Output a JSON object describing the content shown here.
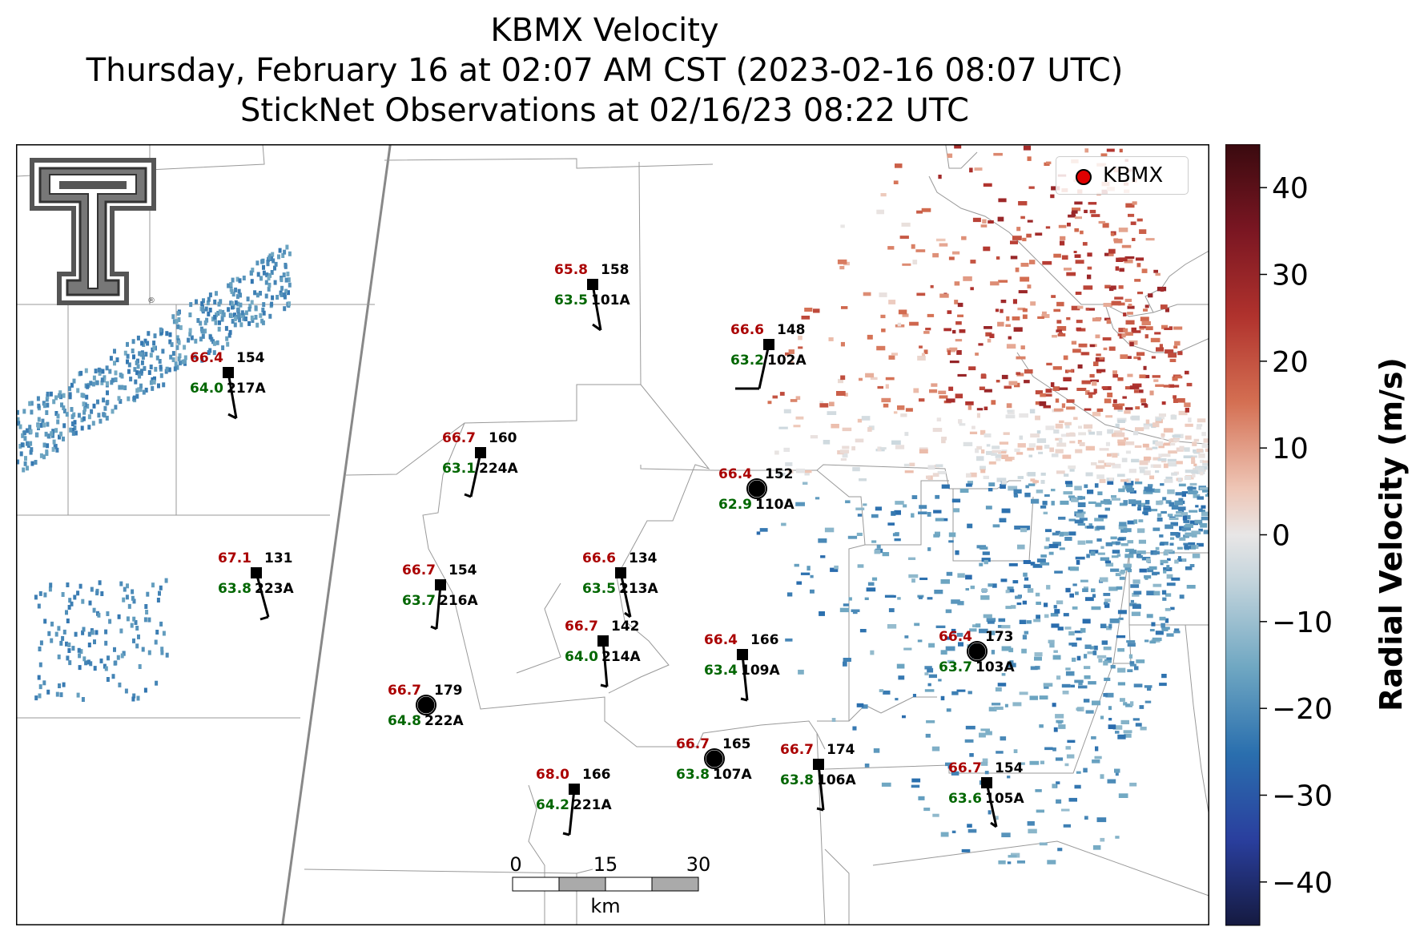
{
  "title": {
    "line1": "KBMX Velocity",
    "line2": "Thursday, February 16 at 02:07 AM CST (2023-02-16 08:07 UTC)",
    "line3": "StickNet Observations at 02/16/23 08:22 UTC"
  },
  "legend": {
    "label": "KBMX"
  },
  "colorbar": {
    "label": "Radial Velocity (m/s)",
    "range": [
      -45,
      45
    ],
    "ticks": [
      "40",
      "30",
      "20",
      "10",
      "0",
      "−10",
      "−20",
      "−30",
      "−40"
    ]
  },
  "scalebar": {
    "ticks": [
      "0",
      "15",
      "30"
    ],
    "unit": "km"
  },
  "logo": {
    "icon": "texas-tech-double-t-logo"
  },
  "colors": {
    "temp": "#aa0000",
    "dewpoint": "#006600",
    "station": "#000000"
  },
  "stations": [
    {
      "id": "101A",
      "temp": "65.8",
      "dew": "63.5",
      "pressure": "158",
      "marker": "square"
    },
    {
      "id": "102A",
      "temp": "66.6",
      "dew": "63.2",
      "pressure": "148",
      "marker": "square"
    },
    {
      "id": "217A",
      "temp": "66.4",
      "dew": "64.0",
      "pressure": "154",
      "marker": "square"
    },
    {
      "id": "224A",
      "temp": "66.7",
      "dew": "63.1",
      "pressure": "160",
      "marker": "square"
    },
    {
      "id": "110A",
      "temp": "66.4",
      "dew": "62.9",
      "pressure": "152",
      "marker": "calm"
    },
    {
      "id": "223A",
      "temp": "67.1",
      "dew": "63.8",
      "pressure": "131",
      "marker": "square"
    },
    {
      "id": "216A",
      "temp": "66.7",
      "dew": "63.7",
      "pressure": "154",
      "marker": "square"
    },
    {
      "id": "213A",
      "temp": "66.6",
      "dew": "63.5",
      "pressure": "134",
      "marker": "square"
    },
    {
      "id": "214A",
      "temp": "66.7",
      "dew": "64.0",
      "pressure": "142",
      "marker": "square"
    },
    {
      "id": "109A",
      "temp": "66.4",
      "dew": "63.4",
      "pressure": "166",
      "marker": "square"
    },
    {
      "id": "103A",
      "temp": "66.4",
      "dew": "63.7",
      "pressure": "173",
      "marker": "calm"
    },
    {
      "id": "222A",
      "temp": "66.7",
      "dew": "64.8",
      "pressure": "179",
      "marker": "calm"
    },
    {
      "id": "107A",
      "temp": "66.7",
      "dew": "63.8",
      "pressure": "165",
      "marker": "calm"
    },
    {
      "id": "106A",
      "temp": "66.7",
      "dew": "63.8",
      "pressure": "174",
      "marker": "square"
    },
    {
      "id": "221A",
      "temp": "68.0",
      "dew": "64.2",
      "pressure": "166",
      "marker": "square"
    },
    {
      "id": "105A",
      "temp": "66.7",
      "dew": "63.6",
      "pressure": "154",
      "marker": "square"
    }
  ]
}
